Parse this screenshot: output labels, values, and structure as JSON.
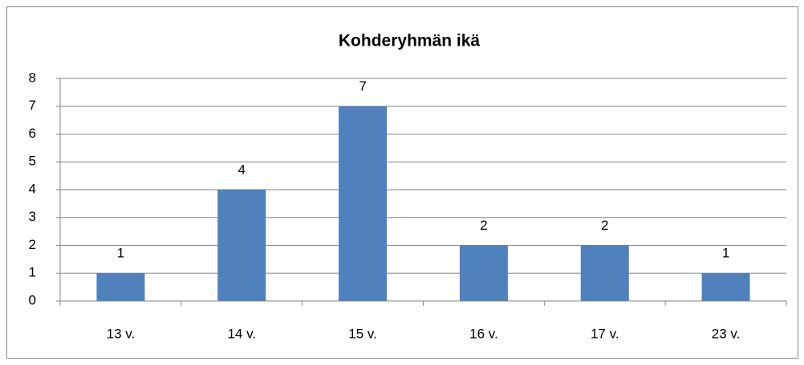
{
  "chart_data": {
    "type": "bar",
    "title": "Kohderyhmän ikä",
    "categories": [
      "13 v.",
      "14 v.",
      "15 v.",
      "16 v.",
      "17 v.",
      "23 v."
    ],
    "values": [
      1,
      4,
      7,
      2,
      2,
      1
    ],
    "color": "#4f81bd",
    "ylim": [
      0,
      8
    ],
    "yticks": [
      0,
      1,
      2,
      3,
      4,
      5,
      6,
      7,
      8
    ],
    "grid": true,
    "data_labels": true
  }
}
